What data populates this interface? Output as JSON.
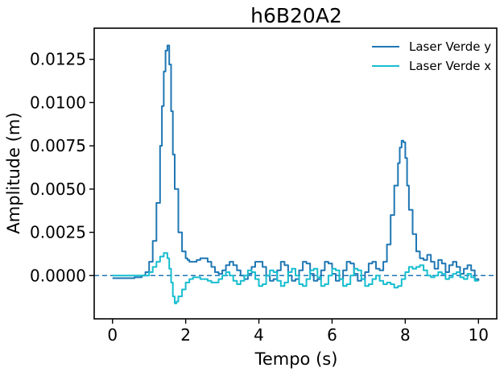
{
  "chart_data": {
    "type": "line",
    "title": "h6B20A2",
    "xlabel": "Tempo (s)",
    "ylabel": "Amplitude (m)",
    "xlim": [
      -0.5,
      10.5
    ],
    "ylim": [
      -0.0025,
      0.0143
    ],
    "xticks": [
      0,
      2,
      4,
      6,
      8,
      10
    ],
    "xtick_labels": [
      "0",
      "2",
      "4",
      "6",
      "8",
      "10"
    ],
    "yticks": [
      0.0,
      0.0025,
      0.005,
      0.0075,
      0.01,
      0.0125
    ],
    "ytick_labels": [
      "0.0000",
      "0.0025",
      "0.0050",
      "0.0075",
      "0.0100",
      "0.0125"
    ],
    "grid": false,
    "legend_position": "top-right",
    "reference_line": {
      "y": 0,
      "style": "dashed",
      "color": "#1f77b4"
    },
    "series": [
      {
        "name": "Laser Verde y",
        "color": "#1f77b4",
        "x": [
          0,
          0.3,
          0.6,
          0.8,
          0.9,
          1.0,
          1.1,
          1.2,
          1.3,
          1.35,
          1.4,
          1.45,
          1.5,
          1.55,
          1.6,
          1.65,
          1.7,
          1.8,
          1.9,
          2.0,
          2.05,
          2.1,
          2.2,
          2.3,
          2.4,
          2.5,
          2.6,
          2.7,
          2.8,
          2.9,
          3.0,
          3.1,
          3.2,
          3.3,
          3.4,
          3.5,
          3.6,
          3.7,
          3.8,
          3.9,
          4.0,
          4.1,
          4.2,
          4.3,
          4.4,
          4.5,
          4.6,
          4.7,
          4.8,
          4.9,
          5.0,
          5.1,
          5.2,
          5.3,
          5.4,
          5.5,
          5.6,
          5.7,
          5.8,
          5.9,
          6.0,
          6.1,
          6.2,
          6.3,
          6.4,
          6.5,
          6.6,
          6.7,
          6.8,
          6.9,
          7.0,
          7.1,
          7.2,
          7.3,
          7.4,
          7.5,
          7.6,
          7.7,
          7.8,
          7.85,
          7.9,
          7.95,
          8.0,
          8.05,
          8.1,
          8.2,
          8.3,
          8.4,
          8.5,
          8.6,
          8.7,
          8.8,
          8.9,
          9.0,
          9.1,
          9.2,
          9.3,
          9.4,
          9.5,
          9.6,
          9.7,
          9.8,
          9.9,
          10.0
        ],
        "y": [
          -0.00015,
          -0.00015,
          -0.0001,
          0.0,
          0.0002,
          0.0008,
          0.002,
          0.0042,
          0.0075,
          0.0098,
          0.0118,
          0.013,
          0.0133,
          0.0122,
          0.0095,
          0.007,
          0.005,
          0.0025,
          0.0014,
          0.001,
          0.0009,
          0.0008,
          0.0008,
          0.0009,
          0.001,
          0.001,
          0.0008,
          0.0005,
          0.0002,
          0.0001,
          0.0003,
          0.0006,
          0.0008,
          0.0006,
          0.0003,
          0.0,
          -0.0002,
          0.0001,
          0.0005,
          0.0008,
          0.0008,
          0.0005,
          0.0,
          -0.0003,
          -0.0002,
          0.0003,
          0.0008,
          0.0006,
          0.0,
          -0.0003,
          -0.0002,
          0.0003,
          0.0008,
          0.0007,
          0.0001,
          -0.0003,
          -0.0002,
          0.0003,
          0.0008,
          0.0007,
          0.0001,
          -0.0003,
          -0.0002,
          0.0003,
          0.0008,
          0.0007,
          0.0001,
          -0.0003,
          -0.0002,
          0.0002,
          0.0007,
          0.0008,
          0.0004,
          0.0003,
          0.0008,
          0.0018,
          0.0035,
          0.0052,
          0.0065,
          0.0074,
          0.0078,
          0.0077,
          0.0068,
          0.0052,
          0.0038,
          0.0024,
          0.0014,
          0.001,
          0.0009,
          0.0012,
          0.0008,
          0.0004,
          0.0009,
          0.0007,
          0.0002,
          0.0006,
          0.0008,
          0.0005,
          0.0001,
          0.0004,
          0.0006,
          0.0003,
          -0.0002,
          -0.0003
        ]
      },
      {
        "name": "Laser Verde x",
        "color": "#17becf",
        "x": [
          0,
          0.3,
          0.6,
          0.8,
          1.0,
          1.1,
          1.2,
          1.3,
          1.4,
          1.5,
          1.55,
          1.6,
          1.65,
          1.7,
          1.75,
          1.8,
          1.9,
          2.0,
          2.1,
          2.2,
          2.3,
          2.4,
          2.5,
          2.6,
          2.7,
          2.8,
          2.9,
          3.0,
          3.1,
          3.2,
          3.3,
          3.4,
          3.5,
          3.6,
          3.7,
          3.8,
          3.9,
          4.0,
          4.1,
          4.2,
          4.3,
          4.4,
          4.5,
          4.6,
          4.7,
          4.8,
          4.9,
          5.0,
          5.1,
          5.2,
          5.3,
          5.4,
          5.5,
          5.6,
          5.7,
          5.8,
          5.9,
          6.0,
          6.1,
          6.2,
          6.3,
          6.4,
          6.5,
          6.6,
          6.7,
          6.8,
          6.9,
          7.0,
          7.1,
          7.2,
          7.3,
          7.4,
          7.5,
          7.6,
          7.7,
          7.8,
          7.9,
          8.0,
          8.1,
          8.2,
          8.3,
          8.4,
          8.5,
          8.6,
          8.7,
          8.8,
          8.9,
          9.0,
          9.1,
          9.2,
          9.3,
          9.4,
          9.5,
          9.6,
          9.7,
          9.8,
          9.9,
          10.0
        ],
        "y": [
          0.0,
          0.0,
          0.0,
          0.0,
          0.0002,
          0.0005,
          0.0008,
          0.0011,
          0.0013,
          0.001,
          0.0004,
          -0.0004,
          -0.0012,
          -0.0016,
          -0.0015,
          -0.0012,
          -0.0008,
          -0.0004,
          -0.0002,
          -0.0001,
          -0.0001,
          -0.0002,
          -0.0002,
          -0.0003,
          -0.0004,
          -0.0004,
          -0.0002,
          0.0,
          0.0002,
          0.0,
          -0.0003,
          -0.0005,
          -0.0003,
          0.0,
          0.0003,
          0.0002,
          -0.0002,
          -0.0006,
          -0.0005,
          0.0,
          0.0003,
          0.0002,
          -0.0003,
          -0.0006,
          -0.0004,
          0.0002,
          0.0004,
          0.0,
          -0.0005,
          -0.0006,
          -0.0002,
          0.0003,
          0.0004,
          -0.0001,
          -0.0006,
          -0.0005,
          0.0,
          0.0004,
          0.0003,
          -0.0002,
          -0.0006,
          -0.0005,
          0.0,
          0.0004,
          0.0003,
          -0.0002,
          -0.0006,
          -0.0005,
          -0.0002,
          0.0,
          -0.0003,
          -0.0005,
          -0.0004,
          -0.0005,
          -0.0007,
          -0.0006,
          -0.0002,
          0.0002,
          0.0005,
          0.0004,
          0.0005,
          0.0006,
          0.0003,
          0.0,
          -0.0001,
          0.0,
          0.0002,
          0.0001,
          -0.0002,
          -0.0001,
          0.0001,
          0.0002,
          -0.0001,
          -0.0002,
          0.0001,
          -0.0001,
          -0.0003,
          -0.0003
        ]
      }
    ]
  }
}
